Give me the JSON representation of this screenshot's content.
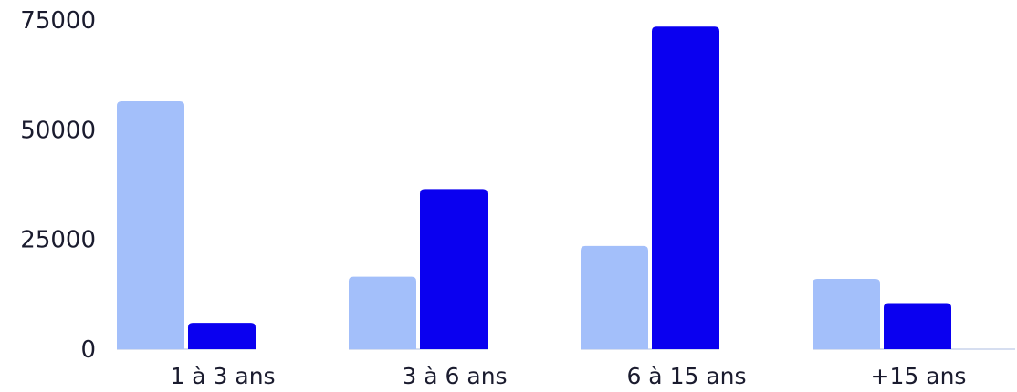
{
  "chart_data": {
    "type": "bar",
    "title": "",
    "xlabel": "",
    "ylabel": "",
    "ylim": [
      0,
      78000
    ],
    "yticks": [
      0,
      25000,
      50000,
      75000
    ],
    "ytick_labels": [
      "0",
      "25000",
      "50000",
      "75000"
    ],
    "grid": false,
    "legend": "none",
    "categories": [
      "1 à 3 ans",
      "3 à 6 ans",
      "6 à 15 ans",
      "+15 ans"
    ],
    "series": [
      {
        "color": "#a3bffa",
        "values": [
          56500,
          16500,
          23500,
          16000
        ]
      },
      {
        "color": "#0a00f0",
        "values": [
          6000,
          36500,
          73500,
          10500
        ]
      }
    ],
    "baseline_color": "#d6def0"
  }
}
